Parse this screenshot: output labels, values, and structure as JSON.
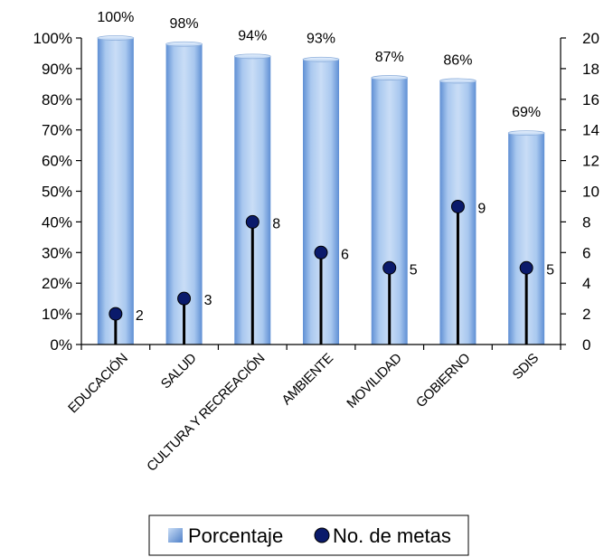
{
  "chart_data": {
    "type": "bar",
    "categories": [
      "EDUCACIÓN",
      "SALUD",
      "CULTURA Y RECREACIÓN",
      "AMBIENTE",
      "MOVILIDAD",
      "GOBIERNO",
      "SDIS"
    ],
    "series": [
      {
        "name": "Porcentaje",
        "type": "bar",
        "axis": "left",
        "values": [
          100,
          98,
          94,
          93,
          87,
          86,
          69
        ],
        "labels": [
          "100%",
          "98%",
          "94%",
          "93%",
          "87%",
          "86%",
          "69%"
        ],
        "color": "#8eb4e3"
      },
      {
        "name": "No. de metas",
        "type": "stem",
        "axis": "right",
        "values": [
          2,
          3,
          8,
          6,
          5,
          9,
          5
        ],
        "labels": [
          "2",
          "3",
          "8",
          "6",
          "5",
          "9",
          "5"
        ],
        "color": "#0a1a6b"
      }
    ],
    "y_left": {
      "range": [
        0,
        100
      ],
      "ticks": [
        "0%",
        "10%",
        "20%",
        "30%",
        "40%",
        "50%",
        "60%",
        "70%",
        "80%",
        "90%",
        "100%"
      ]
    },
    "y_right": {
      "range": [
        0,
        20
      ],
      "ticks": [
        "0",
        "2",
        "4",
        "6",
        "8",
        "10",
        "12",
        "14",
        "16",
        "18",
        "20"
      ]
    },
    "legend": {
      "position": "bottom",
      "items": [
        {
          "label": "Porcentaje",
          "icon": "bar-swatch-icon",
          "color": "#8eb4e3"
        },
        {
          "label": "No. de metas",
          "icon": "circle-marker-icon",
          "color": "#0a1a6b"
        }
      ]
    },
    "grid": false
  }
}
